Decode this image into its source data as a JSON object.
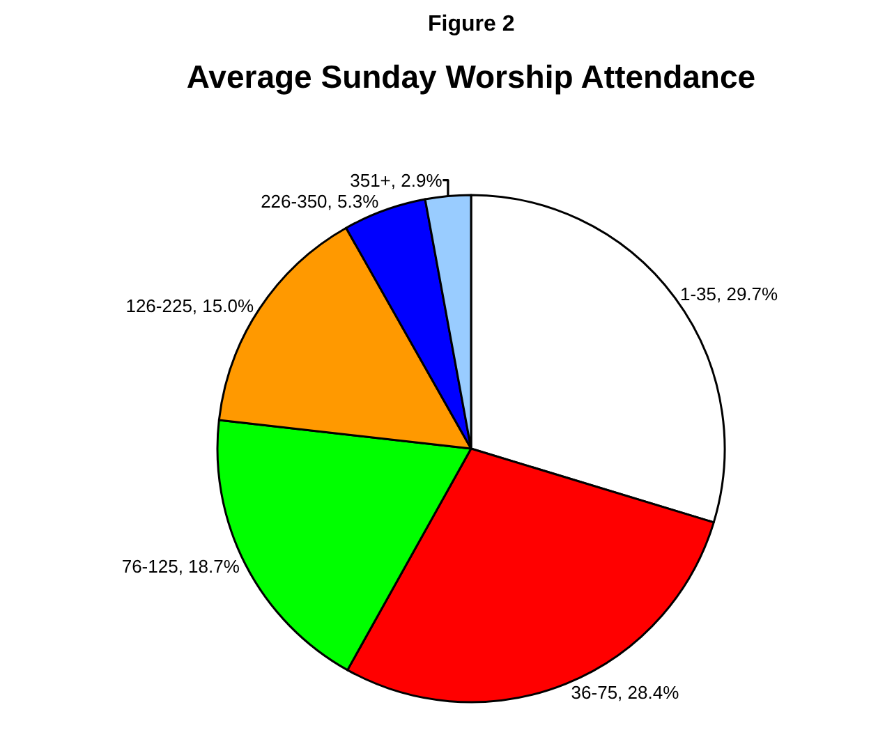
{
  "chart_data": {
    "type": "pie",
    "title": "Average Sunday Worship Attendance",
    "annotations": [
      "Figure 2"
    ],
    "categories": [
      "1-35",
      "36-75",
      "76-125",
      "126-225",
      "226-350",
      "351+"
    ],
    "values": [
      29.7,
      28.4,
      18.7,
      15.0,
      5.3,
      2.9
    ],
    "value_labels": [
      "29.7%",
      "28.4%",
      "18.7%",
      "15.0%",
      "5.3%",
      "2.9%"
    ],
    "colors": [
      "#ffffff",
      "#ff0000",
      "#00ff00",
      "#ff9900",
      "#0000ff",
      "#99ccff"
    ]
  }
}
